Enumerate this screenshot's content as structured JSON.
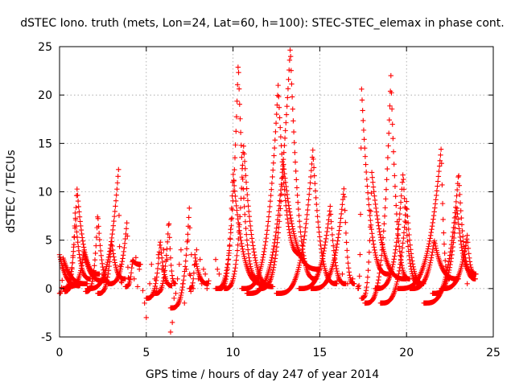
{
  "chart_data": {
    "type": "scatter",
    "title": "dSTEC Iono. truth (mets, Lon=24, Lat=60, h=100): STEC-STEC_elemax in phase cont.",
    "xlabel": "GPS time / hours of day 247 of year 2014",
    "ylabel": "dSTEC  / TECUs",
    "xlim": [
      0,
      25
    ],
    "ylim": [
      -5,
      25
    ],
    "xticks": [
      0,
      5,
      10,
      15,
      20,
      25
    ],
    "yticks": [
      -5,
      0,
      5,
      10,
      15,
      20,
      25
    ],
    "grid": true,
    "marker": "plus",
    "color": "#ff0000",
    "arcs": [
      {
        "t0": 0.0,
        "t1": 1.2,
        "tp": 0.0,
        "peak": 3.5,
        "floor": 0.0,
        "tail": 0.3
      },
      {
        "t0": 0.0,
        "t1": 1.6,
        "tp": 0.2,
        "peak": 3.2,
        "floor": -0.5,
        "tail": 0.5
      },
      {
        "t0": 0.2,
        "t1": 2.3,
        "tp": 1.0,
        "peak": 10.5,
        "floor": 0.0,
        "tail": 1.5
      },
      {
        "t0": 0.3,
        "t1": 1.8,
        "tp": 0.9,
        "peak": 7.8,
        "floor": -0.3,
        "tail": 1.0
      },
      {
        "t0": 0.5,
        "t1": 2.6,
        "tp": 1.4,
        "peak": 3.8,
        "floor": 0.2,
        "tail": 0.8
      },
      {
        "t0": 1.5,
        "t1": 3.0,
        "tp": 2.2,
        "peak": 7.8,
        "floor": -0.3,
        "tail": 0.5
      },
      {
        "t0": 1.6,
        "t1": 3.6,
        "tp": 3.4,
        "peak": 12.3,
        "floor": 0.0,
        "tail": 0.6
      },
      {
        "t0": 2.2,
        "t1": 3.8,
        "tp": 3.0,
        "peak": 5.0,
        "floor": -0.5,
        "tail": 1.0
      },
      {
        "t0": 2.8,
        "t1": 4.0,
        "tp": 3.9,
        "peak": 7.2,
        "floor": 0.5,
        "tail": 1.0
      },
      {
        "t0": 3.8,
        "t1": 4.7,
        "tp": 4.2,
        "peak": 3.0,
        "floor": 0.2,
        "tail": 2.5
      },
      {
        "t0": 5.0,
        "t1": 6.5,
        "tp": 5.8,
        "peak": 5.0,
        "floor": -1.0,
        "tail": 0.3
      },
      {
        "t0": 5.5,
        "t1": 6.7,
        "tp": 6.3,
        "peak": 7.2,
        "floor": -0.5,
        "tail": 0.5
      },
      {
        "t0": 6.4,
        "t1": 7.6,
        "tp": 7.5,
        "peak": 9.0,
        "floor": -2.0,
        "tail": -0.5
      },
      {
        "t0": 7.5,
        "t1": 8.6,
        "tp": 7.8,
        "peak": 3.5,
        "floor": 0.0,
        "tail": 0.5
      },
      {
        "t0": 9.0,
        "t1": 11.5,
        "tp": 10.3,
        "peak": 23.5,
        "floor": 0.0,
        "tail": 1.0
      },
      {
        "t0": 9.2,
        "t1": 11.8,
        "tp": 10.0,
        "peak": 12.0,
        "floor": 0.0,
        "tail": 0.5
      },
      {
        "t0": 9.5,
        "t1": 12.3,
        "tp": 10.6,
        "peak": 15.0,
        "floor": 0.0,
        "tail": 0.2
      },
      {
        "t0": 10.5,
        "t1": 14.0,
        "tp": 12.6,
        "peak": 21.0,
        "floor": 0.0,
        "tail": 3.5
      },
      {
        "t0": 10.8,
        "t1": 14.8,
        "tp": 13.3,
        "peak": 25.0,
        "floor": -0.5,
        "tail": 1.0
      },
      {
        "t0": 11.5,
        "t1": 15.0,
        "tp": 12.9,
        "peak": 13.0,
        "floor": 0.0,
        "tail": 2.0
      },
      {
        "t0": 12.5,
        "t1": 16.0,
        "tp": 14.6,
        "peak": 14.3,
        "floor": -0.5,
        "tail": 0.5
      },
      {
        "t0": 13.8,
        "t1": 16.5,
        "tp": 15.6,
        "peak": 8.5,
        "floor": 0.0,
        "tail": 0.5
      },
      {
        "t0": 14.5,
        "t1": 17.0,
        "tp": 16.4,
        "peak": 10.5,
        "floor": 0.0,
        "tail": 0.5
      },
      {
        "t0": 17.2,
        "t1": 19.0,
        "tp": 17.4,
        "peak": 21.0,
        "floor": 0.0,
        "tail": 1.5
      },
      {
        "t0": 17.4,
        "t1": 20.0,
        "tp": 18.0,
        "peak": 12.0,
        "floor": -1.0,
        "tail": 1.0
      },
      {
        "t0": 17.6,
        "t1": 20.2,
        "tp": 19.1,
        "peak": 22.0,
        "floor": -1.5,
        "tail": 1.0
      },
      {
        "t0": 18.2,
        "t1": 20.8,
        "tp": 19.8,
        "peak": 12.0,
        "floor": 0.0,
        "tail": 0.5
      },
      {
        "t0": 18.5,
        "t1": 21.0,
        "tp": 20.0,
        "peak": 9.0,
        "floor": -1.5,
        "tail": 0.5
      },
      {
        "t0": 19.5,
        "t1": 22.5,
        "tp": 22.0,
        "peak": 14.6,
        "floor": 0.0,
        "tail": 1.0
      },
      {
        "t0": 20.2,
        "t1": 23.0,
        "tp": 21.6,
        "peak": 5.0,
        "floor": 0.0,
        "tail": 1.0
      },
      {
        "t0": 21.0,
        "t1": 24.0,
        "tp": 23.0,
        "peak": 12.0,
        "floor": -1.5,
        "tail": 1.0
      },
      {
        "t0": 21.5,
        "t1": 24.0,
        "tp": 22.9,
        "peak": 8.5,
        "floor": -0.5,
        "tail": 1.5
      },
      {
        "t0": 22.0,
        "t1": 24.0,
        "tp": 23.5,
        "peak": 5.5,
        "floor": 0.0,
        "tail": 1.5
      }
    ],
    "scatter_points": [
      [
        4.2,
        2.5
      ],
      [
        4.3,
        1.0
      ],
      [
        4.4,
        3.2
      ],
      [
        4.5,
        0.2
      ],
      [
        4.6,
        2.0
      ],
      [
        4.8,
        -0.2
      ],
      [
        4.9,
        -1.5
      ],
      [
        5.0,
        -3.0
      ],
      [
        5.1,
        -1.0
      ],
      [
        5.2,
        0.5
      ],
      [
        5.3,
        2.5
      ],
      [
        5.5,
        1.0
      ],
      [
        5.6,
        0.0
      ],
      [
        5.7,
        3.5
      ],
      [
        5.9,
        2.0
      ],
      [
        6.0,
        4.0
      ],
      [
        6.1,
        1.2
      ],
      [
        6.2,
        3.0
      ],
      [
        6.4,
        -4.5
      ],
      [
        6.5,
        -3.5
      ],
      [
        6.5,
        -2.0
      ],
      [
        6.6,
        -1.0
      ],
      [
        6.7,
        -0.5
      ],
      [
        6.8,
        1.0
      ],
      [
        6.9,
        2.5
      ],
      [
        7.0,
        4.0
      ],
      [
        7.1,
        0.5
      ],
      [
        7.2,
        -1.5
      ],
      [
        7.3,
        2.0
      ],
      [
        7.4,
        5.0
      ],
      [
        7.5,
        1.5
      ],
      [
        7.6,
        3.5
      ],
      [
        7.7,
        0.0
      ],
      [
        7.8,
        2.5
      ],
      [
        7.9,
        4.0
      ],
      [
        8.0,
        1.0
      ],
      [
        8.1,
        3.0
      ],
      [
        8.2,
        0.5
      ],
      [
        8.3,
        2.0
      ],
      [
        8.4,
        1.5
      ],
      [
        8.5,
        0.0
      ],
      [
        8.6,
        0.8
      ],
      [
        9.0,
        3.0
      ],
      [
        9.1,
        2.0
      ],
      [
        9.2,
        1.5
      ],
      [
        16.0,
        0.8
      ],
      [
        16.3,
        1.5
      ],
      [
        16.6,
        0.5
      ],
      [
        16.9,
        1.0
      ],
      [
        17.2,
        0.2
      ],
      [
        23.5,
        0.5
      ],
      [
        23.8,
        1.2
      ],
      [
        24.0,
        1.5
      ]
    ]
  }
}
